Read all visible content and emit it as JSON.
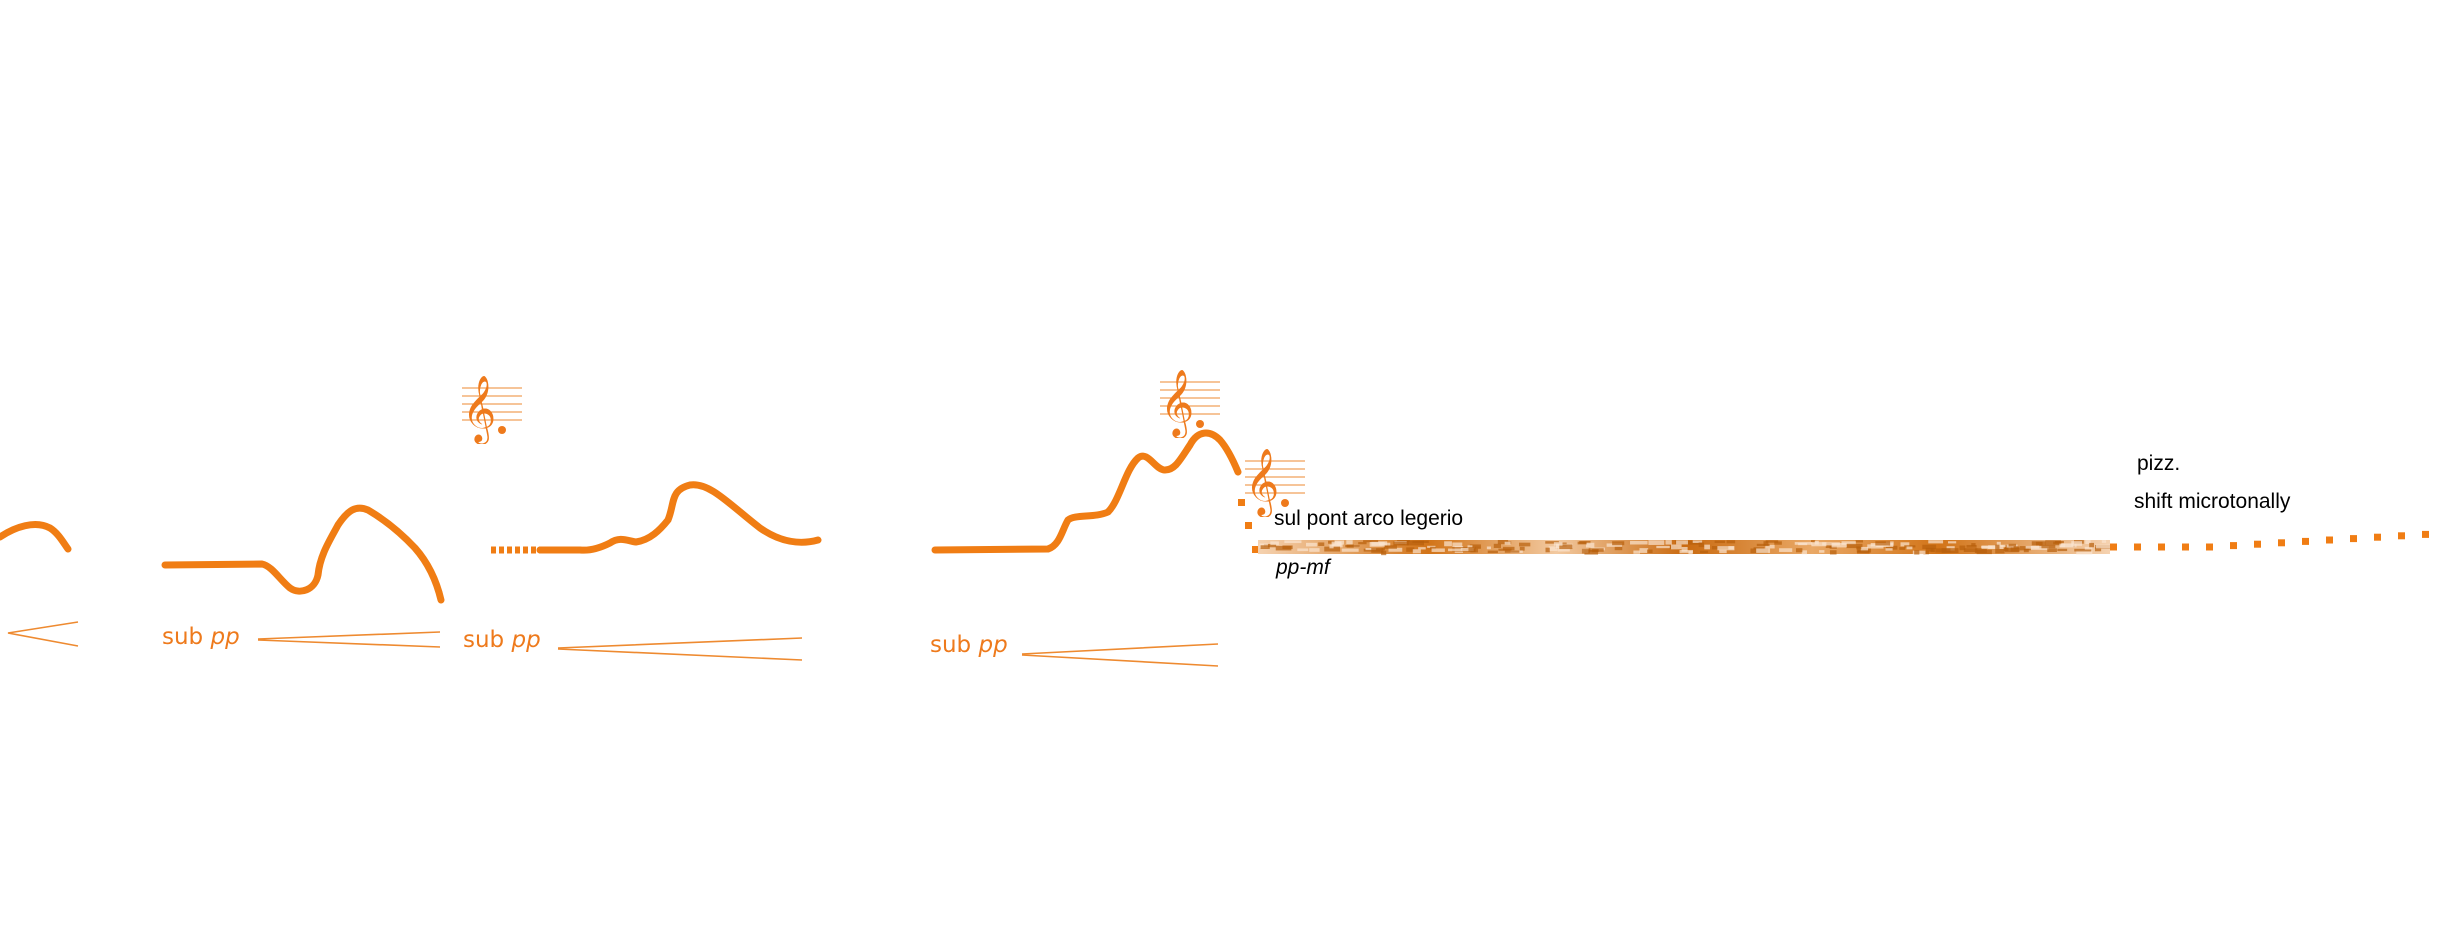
{
  "colors": {
    "line": "#f07d14",
    "hairpin": "#ee8a30",
    "clef": "#ee7a1c",
    "texture_dark": "#c96a10",
    "texture_light": "#f5d2b0",
    "text": "#000000"
  },
  "icons": {
    "clef": "treble-clef-icon"
  },
  "dynamics": {
    "sub_word": "sub",
    "pp": "pp",
    "pp_mf": "pp-mf"
  },
  "techniques": {
    "sul_pont": "sul pont arco legerio",
    "pizz": "pizz.",
    "shift": "shift microtonally"
  }
}
